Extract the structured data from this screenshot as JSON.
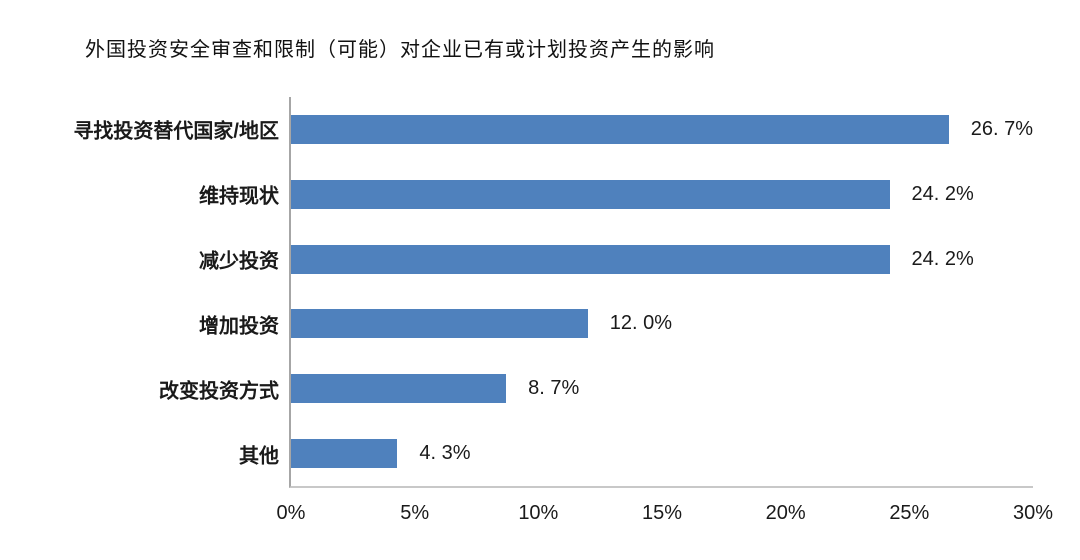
{
  "title": "外国投资安全审查和限制（可能）对企业已有或计划投资产生的影响",
  "colors": {
    "bar": "#4F81BD",
    "axis_vertical": "#a6a6a6",
    "axis_horizontal": "#c8c8c8",
    "text": "#1a1a1a"
  },
  "chart_data": {
    "type": "bar",
    "orientation": "horizontal",
    "title": "外国投资安全审查和限制（可能）对企业已有或计划投资产生的影响",
    "categories": [
      "寻找投资替代国家/地区",
      "维持现状",
      "减少投资",
      "增加投资",
      "改变投资方式",
      "其他"
    ],
    "values": [
      26.7,
      24.2,
      24.2,
      12.0,
      8.7,
      4.3
    ],
    "value_labels": [
      "26. 7%",
      "24. 2%",
      "24. 2%",
      "12. 0%",
      "8. 7%",
      "4. 3%"
    ],
    "xlabel": "",
    "ylabel": "",
    "xlim": [
      0,
      30
    ],
    "x_ticks": [
      "0%",
      "5%",
      "10%",
      "15%",
      "20%",
      "25%",
      "30%"
    ],
    "x_tick_values": [
      0,
      5,
      10,
      15,
      20,
      25,
      30
    ],
    "grid": false,
    "legend": null
  }
}
